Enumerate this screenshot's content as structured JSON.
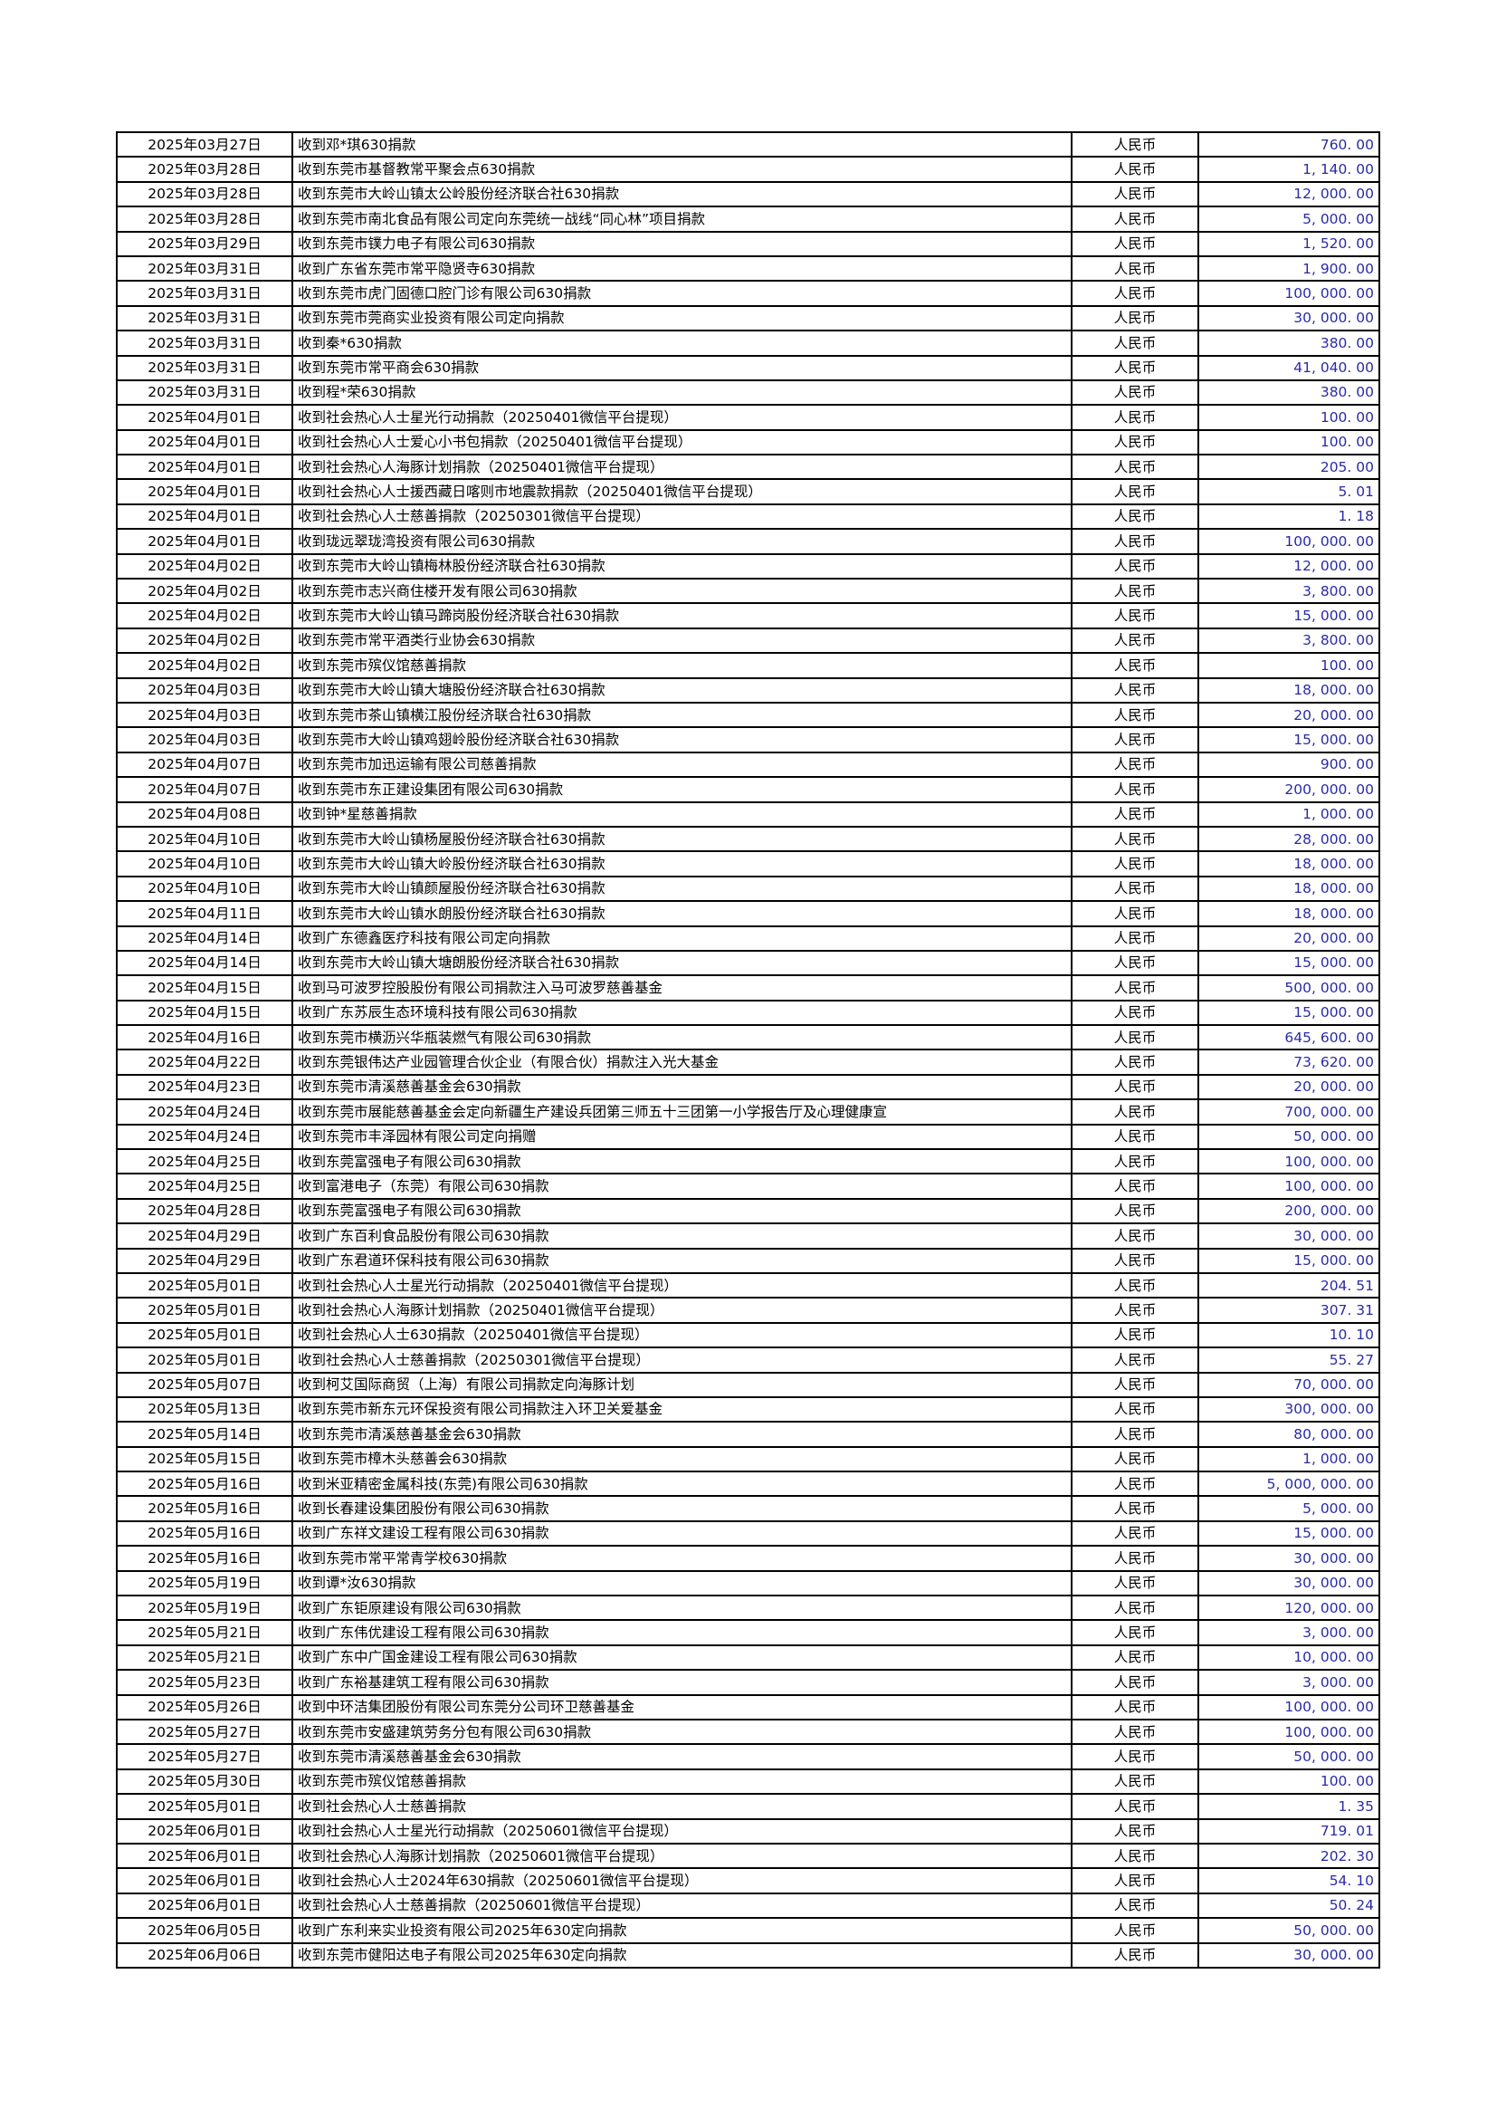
{
  "colors": {
    "amount_text": "#2A2AA6",
    "border": "#000000",
    "background": "#FFFFFF"
  },
  "table": {
    "currency_label": "人民币",
    "rows": [
      {
        "date": "2025年03月27日",
        "desc": "收到邓*琪630捐款",
        "currency": "人民币",
        "amount": "760. 00"
      },
      {
        "date": "2025年03月28日",
        "desc": "收到东莞市基督教常平聚会点630捐款",
        "currency": "人民币",
        "amount": "1, 140. 00"
      },
      {
        "date": "2025年03月28日",
        "desc": "收到东莞市大岭山镇太公岭股份经济联合社630捐款",
        "currency": "人民币",
        "amount": "12, 000. 00"
      },
      {
        "date": "2025年03月28日",
        "desc": "收到东莞市南北食品有限公司定向东莞统一战线“同心林”项目捐款",
        "currency": "人民币",
        "amount": "5, 000. 00"
      },
      {
        "date": "2025年03月29日",
        "desc": "收到东莞市镤力电子有限公司630捐款",
        "currency": "人民币",
        "amount": "1, 520. 00"
      },
      {
        "date": "2025年03月31日",
        "desc": "收到广东省东莞市常平隐贤寺630捐款",
        "currency": "人民币",
        "amount": "1, 900. 00"
      },
      {
        "date": "2025年03月31日",
        "desc": "收到东莞市虎门固德口腔门诊有限公司630捐款",
        "currency": "人民币",
        "amount": "100, 000. 00"
      },
      {
        "date": "2025年03月31日",
        "desc": "收到东莞市莞商实业投资有限公司定向捐款",
        "currency": "人民币",
        "amount": "30, 000. 00"
      },
      {
        "date": "2025年03月31日",
        "desc": "收到秦*630捐款",
        "currency": "人民币",
        "amount": "380. 00"
      },
      {
        "date": "2025年03月31日",
        "desc": "收到东莞市常平商会630捐款",
        "currency": "人民币",
        "amount": "41, 040. 00"
      },
      {
        "date": "2025年03月31日",
        "desc": "收到程*荣630捐款",
        "currency": "人民币",
        "amount": "380. 00"
      },
      {
        "date": "2025年04月01日",
        "desc": "收到社会热心人士星光行动捐款（20250401微信平台提现）",
        "currency": "人民币",
        "amount": "100. 00"
      },
      {
        "date": "2025年04月01日",
        "desc": "收到社会热心人士爱心小书包捐款（20250401微信平台提现）",
        "currency": "人民币",
        "amount": "100. 00"
      },
      {
        "date": "2025年04月01日",
        "desc": "收到社会热心人海豚计划捐款（20250401微信平台提现）",
        "currency": "人民币",
        "amount": "205. 00"
      },
      {
        "date": "2025年04月01日",
        "desc": "收到社会热心人士援西藏日喀则市地震款捐款（20250401微信平台提现）",
        "currency": "人民币",
        "amount": "5. 01"
      },
      {
        "date": "2025年04月01日",
        "desc": "收到社会热心人士慈善捐款（20250301微信平台提现）",
        "currency": "人民币",
        "amount": "1. 18"
      },
      {
        "date": "2025年04月01日",
        "desc": "收到珑远翠珑湾投资有限公司630捐款",
        "currency": "人民币",
        "amount": "100, 000. 00"
      },
      {
        "date": "2025年04月02日",
        "desc": "收到东莞市大岭山镇梅林股份经济联合社630捐款",
        "currency": "人民币",
        "amount": "12, 000. 00"
      },
      {
        "date": "2025年04月02日",
        "desc": "收到东莞市志兴商住楼开发有限公司630捐款",
        "currency": "人民币",
        "amount": "3, 800. 00"
      },
      {
        "date": "2025年04月02日",
        "desc": "收到东莞市大岭山镇马蹄岗股份经济联合社630捐款",
        "currency": "人民币",
        "amount": "15, 000. 00"
      },
      {
        "date": "2025年04月02日",
        "desc": "收到东莞市常平酒类行业协会630捐款",
        "currency": "人民币",
        "amount": "3, 800. 00"
      },
      {
        "date": "2025年04月02日",
        "desc": "收到东莞市殡仪馆慈善捐款",
        "currency": "人民币",
        "amount": "100. 00"
      },
      {
        "date": "2025年04月03日",
        "desc": "收到东莞市大岭山镇大塘股份经济联合社630捐款",
        "currency": "人民币",
        "amount": "18, 000. 00"
      },
      {
        "date": "2025年04月03日",
        "desc": "收到东莞市茶山镇横江股份经济联合社630捐款",
        "currency": "人民币",
        "amount": "20, 000. 00"
      },
      {
        "date": "2025年04月03日",
        "desc": "收到东莞市大岭山镇鸡翅岭股份经济联合社630捐款",
        "currency": "人民币",
        "amount": "15, 000. 00"
      },
      {
        "date": "2025年04月07日",
        "desc": "收到东莞市加迅运输有限公司慈善捐款",
        "currency": "人民币",
        "amount": "900. 00"
      },
      {
        "date": "2025年04月07日",
        "desc": "收到东莞市东正建设集团有限公司630捐款",
        "currency": "人民币",
        "amount": "200, 000. 00"
      },
      {
        "date": "2025年04月08日",
        "desc": "收到钟*星慈善捐款",
        "currency": "人民币",
        "amount": "1, 000. 00"
      },
      {
        "date": "2025年04月10日",
        "desc": "收到东莞市大岭山镇杨屋股份经济联合社630捐款",
        "currency": "人民币",
        "amount": "28, 000. 00"
      },
      {
        "date": "2025年04月10日",
        "desc": "收到东莞市大岭山镇大岭股份经济联合社630捐款",
        "currency": "人民币",
        "amount": "18, 000. 00"
      },
      {
        "date": "2025年04月10日",
        "desc": "收到东莞市大岭山镇颜屋股份经济联合社630捐款",
        "currency": "人民币",
        "amount": "18, 000. 00"
      },
      {
        "date": "2025年04月11日",
        "desc": "收到东莞市大岭山镇水朗股份经济联合社630捐款",
        "currency": "人民币",
        "amount": "18, 000. 00"
      },
      {
        "date": "2025年04月14日",
        "desc": "收到广东德鑫医疗科技有限公司定向捐款",
        "currency": "人民币",
        "amount": "20, 000. 00"
      },
      {
        "date": "2025年04月14日",
        "desc": "收到东莞市大岭山镇大塘朗股份经济联合社630捐款",
        "currency": "人民币",
        "amount": "15, 000. 00"
      },
      {
        "date": "2025年04月15日",
        "desc": "收到马可波罗控股股份有限公司捐款注入马可波罗慈善基金",
        "currency": "人民币",
        "amount": "500, 000. 00"
      },
      {
        "date": "2025年04月15日",
        "desc": "收到广东苏辰生态环境科技有限公司630捐款",
        "currency": "人民币",
        "amount": "15, 000. 00"
      },
      {
        "date": "2025年04月16日",
        "desc": "收到东莞市横沥兴华瓶装燃气有限公司630捐款",
        "currency": "人民币",
        "amount": "645, 600. 00"
      },
      {
        "date": "2025年04月22日",
        "desc": "收到东莞银伟达产业园管理合伙企业（有限合伙）捐款注入光大基金",
        "currency": "人民币",
        "amount": "73, 620. 00"
      },
      {
        "date": "2025年04月23日",
        "desc": "收到东莞市清溪慈善基金会630捐款",
        "currency": "人民币",
        "amount": "20, 000. 00"
      },
      {
        "date": "2025年04月24日",
        "desc": "收到东莞市展能慈善基金会定向新疆生产建设兵团第三师五十三团第一小学报告厅及心理健康宣",
        "currency": "人民币",
        "amount": "700, 000. 00"
      },
      {
        "date": "2025年04月24日",
        "desc": "收到东莞市丰泽园林有限公司定向捐赠",
        "currency": "人民币",
        "amount": "50, 000. 00"
      },
      {
        "date": "2025年04月25日",
        "desc": "收到东莞富强电子有限公司630捐款",
        "currency": "人民币",
        "amount": "100, 000. 00"
      },
      {
        "date": "2025年04月25日",
        "desc": "收到富港电子（东莞）有限公司630捐款",
        "currency": "人民币",
        "amount": "100, 000. 00"
      },
      {
        "date": "2025年04月28日",
        "desc": "收到东莞富强电子有限公司630捐款",
        "currency": "人民币",
        "amount": "200, 000. 00"
      },
      {
        "date": "2025年04月29日",
        "desc": "收到广东百利食品股份有限公司630捐款",
        "currency": "人民币",
        "amount": "30, 000. 00"
      },
      {
        "date": "2025年04月29日",
        "desc": "收到广东君道环保科技有限公司630捐款",
        "currency": "人民币",
        "amount": "15, 000. 00"
      },
      {
        "date": "2025年05月01日",
        "desc": "收到社会热心人士星光行动捐款（20250401微信平台提现）",
        "currency": "人民币",
        "amount": "204. 51"
      },
      {
        "date": "2025年05月01日",
        "desc": "收到社会热心人海豚计划捐款（20250401微信平台提现）",
        "currency": "人民币",
        "amount": "307. 31"
      },
      {
        "date": "2025年05月01日",
        "desc": "收到社会热心人士630捐款（20250401微信平台提现）",
        "currency": "人民币",
        "amount": "10. 10"
      },
      {
        "date": "2025年05月01日",
        "desc": "收到社会热心人士慈善捐款（20250301微信平台提现）",
        "currency": "人民币",
        "amount": "55. 27"
      },
      {
        "date": "2025年05月07日",
        "desc": "收到柯艾国际商贸（上海）有限公司捐款定向海豚计划",
        "currency": "人民币",
        "amount": "70, 000. 00"
      },
      {
        "date": "2025年05月13日",
        "desc": "收到东莞市新东元环保投资有限公司捐款注入环卫关爱基金",
        "currency": "人民币",
        "amount": "300, 000. 00"
      },
      {
        "date": "2025年05月14日",
        "desc": "收到东莞市清溪慈善基金会630捐款",
        "currency": "人民币",
        "amount": "80, 000. 00"
      },
      {
        "date": "2025年05月15日",
        "desc": "收到东莞市樟木头慈善会630捐款",
        "currency": "人民币",
        "amount": "1, 000. 00"
      },
      {
        "date": "2025年05月16日",
        "desc": "收到米亚精密金属科技(东莞)有限公司630捐款",
        "currency": "人民币",
        "amount": "5, 000, 000. 00"
      },
      {
        "date": "2025年05月16日",
        "desc": "收到长春建设集团股份有限公司630捐款",
        "currency": "人民币",
        "amount": "5, 000. 00"
      },
      {
        "date": "2025年05月16日",
        "desc": "收到广东祥文建设工程有限公司630捐款",
        "currency": "人民币",
        "amount": "15, 000. 00"
      },
      {
        "date": "2025年05月16日",
        "desc": "收到东莞市常平常青学校630捐款",
        "currency": "人民币",
        "amount": "30, 000. 00"
      },
      {
        "date": "2025年05月19日",
        "desc": "收到谭*汝630捐款",
        "currency": "人民币",
        "amount": "30, 000. 00"
      },
      {
        "date": "2025年05月19日",
        "desc": "收到广东钜原建设有限公司630捐款",
        "currency": "人民币",
        "amount": "120, 000. 00"
      },
      {
        "date": "2025年05月21日",
        "desc": "收到广东伟优建设工程有限公司630捐款",
        "currency": "人民币",
        "amount": "3, 000. 00"
      },
      {
        "date": "2025年05月21日",
        "desc": "收到广东中广国金建设工程有限公司630捐款",
        "currency": "人民币",
        "amount": "10, 000. 00"
      },
      {
        "date": "2025年05月23日",
        "desc": "收到广东裕基建筑工程有限公司630捐款",
        "currency": "人民币",
        "amount": "3, 000. 00"
      },
      {
        "date": "2025年05月26日",
        "desc": "收到中环洁集团股份有限公司东莞分公司环卫慈善基金",
        "currency": "人民币",
        "amount": "100, 000. 00"
      },
      {
        "date": "2025年05月27日",
        "desc": "收到东莞市安盛建筑劳务分包有限公司630捐款",
        "currency": "人民币",
        "amount": "100, 000. 00"
      },
      {
        "date": "2025年05月27日",
        "desc": "收到东莞市清溪慈善基金会630捐款",
        "currency": "人民币",
        "amount": "50, 000. 00"
      },
      {
        "date": "2025年05月30日",
        "desc": "收到东莞市殡仪馆慈善捐款",
        "currency": "人民币",
        "amount": "100. 00"
      },
      {
        "date": "2025年05月01日",
        "desc": "收到社会热心人士慈善捐款",
        "currency": "人民币",
        "amount": "1. 35"
      },
      {
        "date": "2025年06月01日",
        "desc": "收到社会热心人士星光行动捐款（20250601微信平台提现）",
        "currency": "人民币",
        "amount": "719. 01"
      },
      {
        "date": "2025年06月01日",
        "desc": "收到社会热心人海豚计划捐款（20250601微信平台提现）",
        "currency": "人民币",
        "amount": "202. 30"
      },
      {
        "date": "2025年06月01日",
        "desc": "收到社会热心人士2024年630捐款（20250601微信平台提现）",
        "currency": "人民币",
        "amount": "54. 10"
      },
      {
        "date": "2025年06月01日",
        "desc": "收到社会热心人士慈善捐款（20250601微信平台提现）",
        "currency": "人民币",
        "amount": "50. 24"
      },
      {
        "date": "2025年06月05日",
        "desc": "收到广东利来实业投资有限公司2025年630定向捐款",
        "currency": "人民币",
        "amount": "50, 000. 00"
      },
      {
        "date": "2025年06月06日",
        "desc": "收到东莞市健阳达电子有限公司2025年630定向捐款",
        "currency": "人民币",
        "amount": "30, 000. 00"
      }
    ]
  }
}
